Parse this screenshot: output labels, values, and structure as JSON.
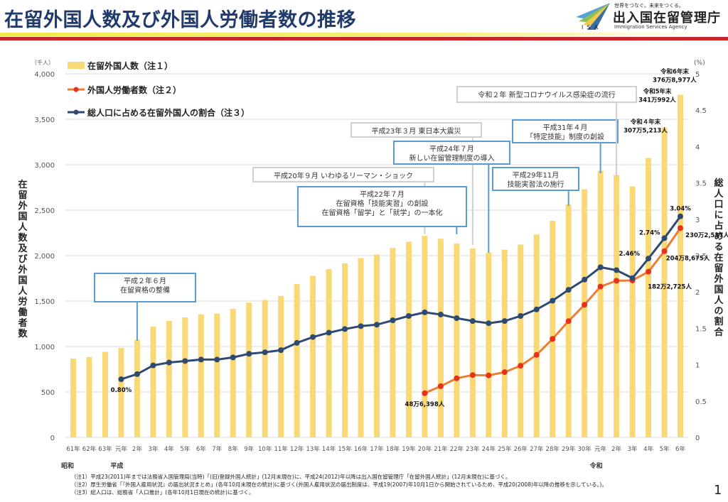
{
  "header": {
    "title": "在留外国人数及び外国人労働者数の推移",
    "logo": {
      "tagline": "世界をつなぐ。未来をつくる。",
      "name": "出入国在留管理庁",
      "english": "Immigration Services Agency",
      "abbr": "ISA"
    }
  },
  "chart_data": {
    "type": "bar",
    "title": "在留外国人数及び外国人労働者数の推移",
    "ylabel": "在留外国人数及び外国人労働者数",
    "ylabel_unit": "（千人）",
    "y2label": "総人口に占める在留外国人の割合",
    "y2label_unit": "(%)",
    "ylim": [
      0,
      4000
    ],
    "y2lim": [
      0,
      5
    ],
    "yticks": [
      "0",
      "500",
      "1,000",
      "1,500",
      "2,000",
      "2,500",
      "3,000",
      "3,500",
      "4,000"
    ],
    "y2ticks": [
      "0",
      "0.5",
      "1",
      "1.5",
      "2",
      "2.5",
      "3",
      "3.5",
      "4",
      "4.5",
      "5"
    ],
    "grid": true,
    "legend_position": "top-left",
    "categories": [
      "61年",
      "62年",
      "63年",
      "元年",
      "2年",
      "3年",
      "4年",
      "5年",
      "6年",
      "7年",
      "8年",
      "9年",
      "10年",
      "11年",
      "12年",
      "13年",
      "14年",
      "15年",
      "16年",
      "17年",
      "18年",
      "19年",
      "20年",
      "21年",
      "22年",
      "23年",
      "24年",
      "25年",
      "26年",
      "27年",
      "28年",
      "29年",
      "30年",
      "元年",
      "2年",
      "3年",
      "4年",
      "5年",
      "6年"
    ],
    "era_labels": [
      {
        "label": "昭和",
        "at_category": 0
      },
      {
        "label": "平成",
        "at_category": 3
      },
      {
        "label": "令和",
        "at_category": 33
      }
    ],
    "series": [
      {
        "name": "在留外国人数（注１）",
        "type": "bar",
        "axis": "left",
        "color": "#f9d976",
        "values": [
          867,
          884,
          941,
          984,
          1075,
          1219,
          1282,
          1321,
          1354,
          1362,
          1415,
          1483,
          1512,
          1556,
          1686,
          1778,
          1852,
          1915,
          1974,
          2012,
          2085,
          2153,
          2217,
          2186,
          2134,
          2079,
          2034,
          2066,
          2122,
          2232,
          2383,
          2562,
          2731,
          2933,
          2887,
          2761,
          3075,
          3411,
          3769
        ]
      },
      {
        "name": "外国人労働者数（注２）",
        "type": "line",
        "axis": "left",
        "color": "#ed7d31",
        "marker_color": "#e8301f",
        "values": [
          null,
          null,
          null,
          null,
          null,
          null,
          null,
          null,
          null,
          null,
          null,
          null,
          null,
          null,
          null,
          null,
          null,
          null,
          null,
          null,
          null,
          null,
          486,
          563,
          650,
          686,
          682,
          718,
          788,
          908,
          1084,
          1279,
          1460,
          1659,
          1724,
          1727,
          1823,
          2049,
          2303
        ]
      },
      {
        "name": "総人口に占める在留外国人の割合（注３）",
        "type": "line",
        "axis": "right",
        "color": "#2e4a72",
        "marker_color": "#2e4a72",
        "values": [
          null,
          null,
          null,
          0.8,
          0.87,
          0.99,
          1.03,
          1.05,
          1.07,
          1.07,
          1.1,
          1.15,
          1.17,
          1.2,
          1.3,
          1.38,
          1.44,
          1.49,
          1.53,
          1.55,
          1.61,
          1.67,
          1.72,
          1.69,
          1.64,
          1.6,
          1.57,
          1.6,
          1.67,
          1.76,
          1.88,
          2.03,
          2.17,
          2.34,
          2.3,
          2.19,
          2.46,
          2.74,
          3.04
        ]
      }
    ],
    "data_labels": [
      {
        "series": 2,
        "category": 3,
        "text": "0.80%"
      },
      {
        "series": 1,
        "category": 22,
        "text": "48万6,398人"
      },
      {
        "series": 1,
        "category": 36,
        "text": "182万2,725人"
      },
      {
        "series": 1,
        "category": 37,
        "text": "204万8,675人"
      },
      {
        "series": 1,
        "category": 38,
        "text": "230万2,587人"
      },
      {
        "series": 2,
        "category": 36,
        "text": "2.46%"
      },
      {
        "series": 2,
        "category": 37,
        "text": "2.74%"
      },
      {
        "series": 2,
        "category": 38,
        "text": "3.04%"
      },
      {
        "series": 0,
        "category": 36,
        "text": "令和４年末\n307万5,213人"
      },
      {
        "series": 0,
        "category": 37,
        "text": "令和5年末\n341万992人"
      },
      {
        "series": 0,
        "category": 38,
        "text": "令和6年末\n376万8,977人"
      }
    ],
    "annotations": [
      {
        "text": "平成２年６月\n在留資格の整備",
        "style": "blue",
        "category": 4
      },
      {
        "text": "平成20年９月 いわゆるリーマン・ショック",
        "style": "gray",
        "category": 22
      },
      {
        "text": "平成22年７月\n在留資格「技能実習」の創設\n在留資格「留学」と「就学」の一本化",
        "style": "blue",
        "category": 24
      },
      {
        "text": "平成23年３月 東日本大震災",
        "style": "gray",
        "category": 25
      },
      {
        "text": "平成24年７月\n新しい在留管理制度の導入",
        "style": "blue",
        "category": 26
      },
      {
        "text": "平成29年11月\n技能実習法の施行",
        "style": "blue",
        "category": 31
      },
      {
        "text": "平成31年４月\n「特定技能」制度の創設",
        "style": "blue",
        "category": 33
      },
      {
        "text": "令和２年 新型コロナウイルス感染症の流行",
        "style": "gray",
        "category": 34
      }
    ]
  },
  "notes": [
    "（注1）平成23(2011)年までは法務省入国管理局(当時)「(旧)登録外国人統計」(12月末現在)に、平成24(2012)年以降は出入国在留管理庁「在留外国人統計」(12月末現在)に基づく。",
    "（注2）厚生労働省「『外国人雇用状況』の届出状況まとめ」(各年10月末現在の統計)に基づく(外国人雇用状況の届出制度は、平成19(2007)年10月1日から開始されているため、平成20(2008)年以降の推移を示している。)。",
    "（注3）総人口は、総務省「人口推計」(各年10月1日現在の統計)に基づく。"
  ],
  "page_number": "1"
}
